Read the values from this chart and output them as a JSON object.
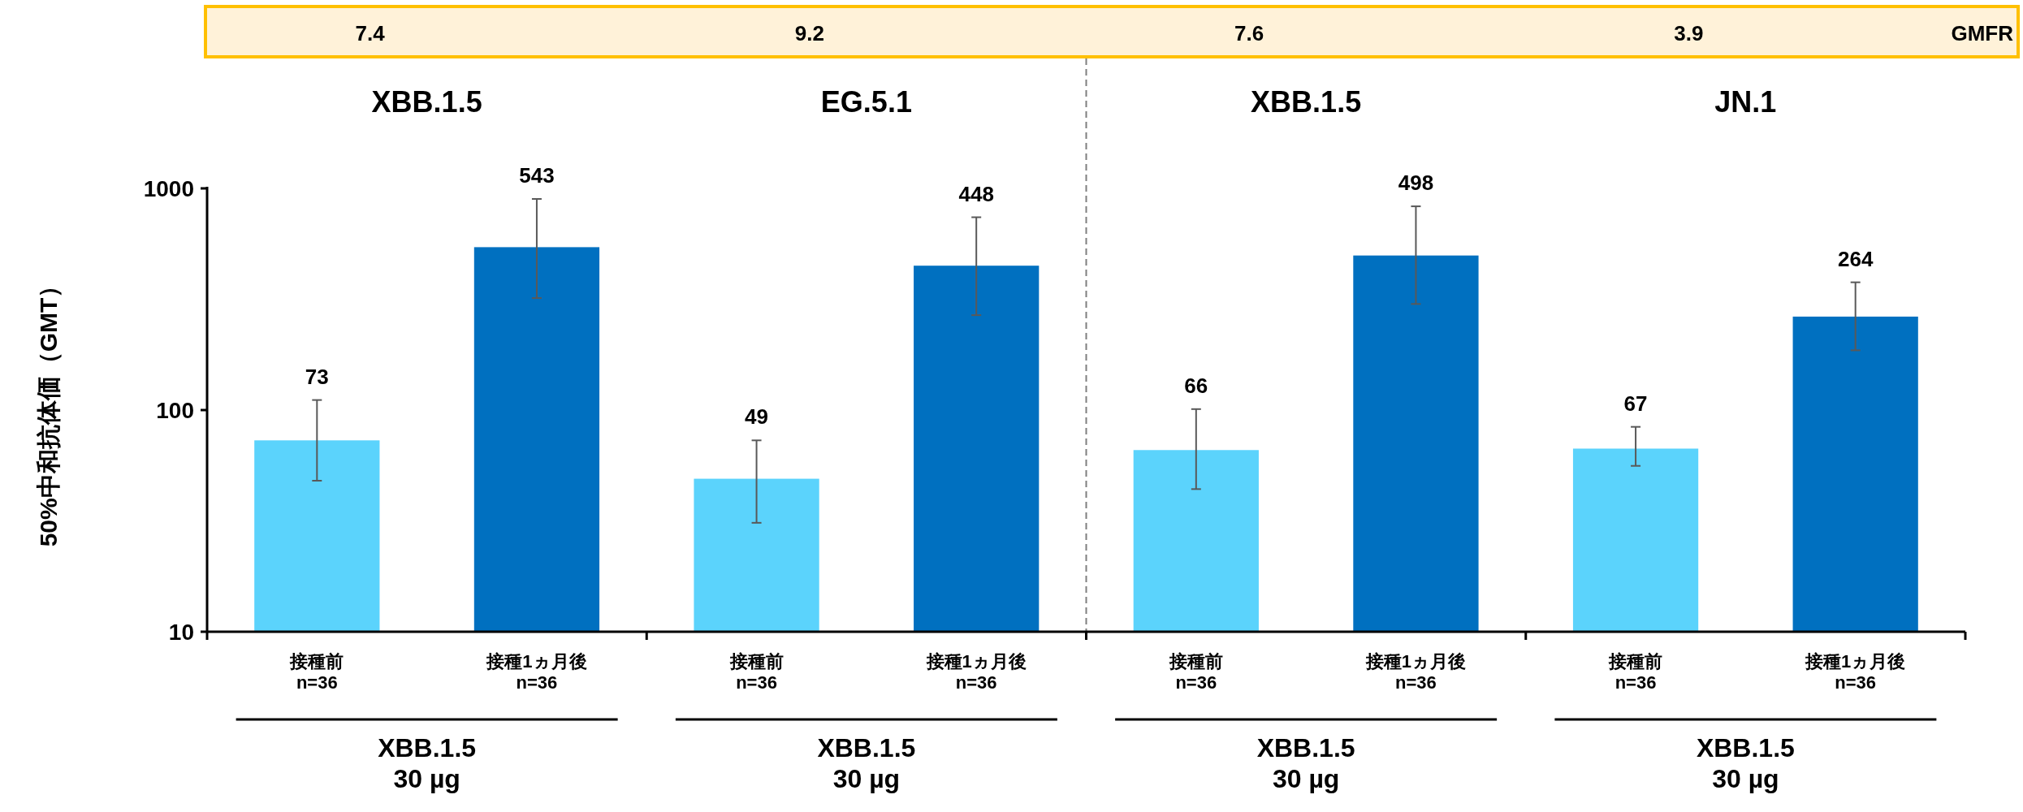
{
  "chart_data": {
    "type": "bar",
    "ylabel": "50%中和抗体価（GMT）",
    "categories": [
      "接種前\nn=36",
      "接種1ヵ月後\nn=36",
      "接種前\nn=36",
      "接種1ヵ月後\nn=36",
      "接種前\nn=36",
      "接種1ヵ月後\nn=36",
      "接種前\nn=36",
      "接種1ヵ月後\nn=36"
    ],
    "values": [
      73,
      543,
      49,
      448,
      66,
      498,
      67,
      264
    ],
    "colors": [
      "#5bd3fc",
      "#0070c0",
      "#5bd3fc",
      "#0070c0",
      "#5bd3fc",
      "#0070c0",
      "#5bd3fc",
      "#0070c0"
    ],
    "errors": [
      [
        48,
        111
      ],
      [
        320,
        896
      ],
      [
        31,
        73
      ],
      [
        268,
        741
      ],
      [
        44,
        101
      ],
      [
        301,
        830
      ],
      [
        56,
        84
      ],
      [
        186,
        377
      ]
    ],
    "data_labels": true,
    "log": true,
    "ylim": [
      10,
      1000
    ],
    "yticks": [
      10,
      100,
      1000
    ],
    "annotations": [
      "7.4",
      "9.2",
      "7.6",
      "3.9",
      "GMFR",
      "XBB.1.5",
      "EG.5.1",
      "XBB.1.5",
      "JN.1",
      "XBB.1.5\n30 µg",
      "XBB.1.5\n30 µg",
      "XBB.1.5\n30 µg",
      "XBB.1.5\n30 µg"
    ]
  }
}
